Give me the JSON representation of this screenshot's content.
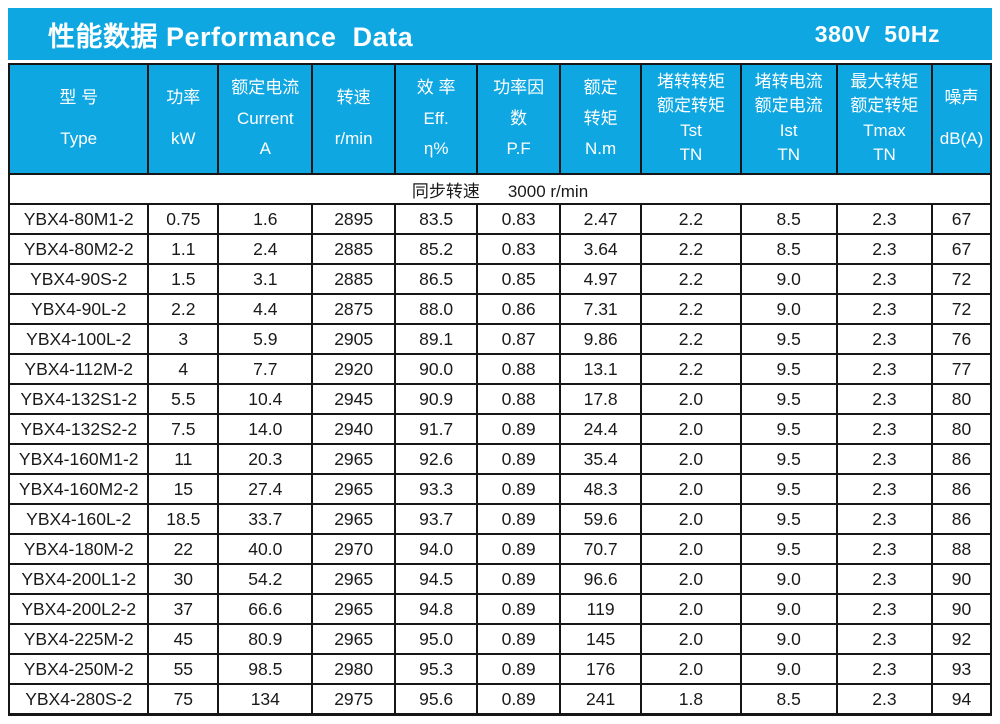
{
  "colors": {
    "accent": "#0ea7e2",
    "border": "#161616",
    "header_text": "#ffffff",
    "data_text": "#1a1a1a"
  },
  "title_bar": {
    "title": "性能数据 Performance  Data",
    "voltage_freq": "380V  50Hz"
  },
  "sync_row": {
    "label": "同步转速",
    "value": "3000 r/min"
  },
  "table": {
    "columns": [
      {
        "id": "type",
        "lines": [
          "型 号",
          "Type"
        ]
      },
      {
        "id": "power",
        "lines": [
          "功率",
          "kW"
        ]
      },
      {
        "id": "current",
        "lines": [
          "额定电流",
          "Current",
          "A"
        ]
      },
      {
        "id": "speed",
        "lines": [
          "转速",
          "r/min"
        ]
      },
      {
        "id": "efficiency",
        "lines": [
          "效 率",
          "Eff.",
          "η%"
        ]
      },
      {
        "id": "power-factor",
        "lines": [
          "功率因",
          "数",
          "P.F"
        ]
      },
      {
        "id": "rated-torque",
        "lines": [
          "额定",
          "转矩",
          "N.m"
        ]
      },
      {
        "id": "locked-rotor-torque-ratio",
        "lines": [
          "堵转转矩",
          "额定转矩",
          "Tst",
          "TN"
        ]
      },
      {
        "id": "locked-rotor-current-ratio",
        "lines": [
          "堵转电流",
          "额定电流",
          "Ist",
          "TN"
        ]
      },
      {
        "id": "max-torque-ratio",
        "lines": [
          "最大转矩",
          "额定转矩",
          "Tmax",
          "TN"
        ]
      },
      {
        "id": "noise",
        "lines": [
          "噪声",
          "dB(A)"
        ]
      }
    ],
    "rows": [
      [
        "YBX4-80M1-2",
        "0.75",
        "1.6",
        "2895",
        "83.5",
        "0.83",
        "2.47",
        "2.2",
        "8.5",
        "2.3",
        "67"
      ],
      [
        "YBX4-80M2-2",
        "1.1",
        "2.4",
        "2885",
        "85.2",
        "0.83",
        "3.64",
        "2.2",
        "8.5",
        "2.3",
        "67"
      ],
      [
        "YBX4-90S-2",
        "1.5",
        "3.1",
        "2885",
        "86.5",
        "0.85",
        "4.97",
        "2.2",
        "9.0",
        "2.3",
        "72"
      ],
      [
        "YBX4-90L-2",
        "2.2",
        "4.4",
        "2875",
        "88.0",
        "0.86",
        "7.31",
        "2.2",
        "9.0",
        "2.3",
        "72"
      ],
      [
        "YBX4-100L-2",
        "3",
        "5.9",
        "2905",
        "89.1",
        "0.87",
        "9.86",
        "2.2",
        "9.5",
        "2.3",
        "76"
      ],
      [
        "YBX4-112M-2",
        "4",
        "7.7",
        "2920",
        "90.0",
        "0.88",
        "13.1",
        "2.2",
        "9.5",
        "2.3",
        "77"
      ],
      [
        "YBX4-132S1-2",
        "5.5",
        "10.4",
        "2945",
        "90.9",
        "0.88",
        "17.8",
        "2.0",
        "9.5",
        "2.3",
        "80"
      ],
      [
        "YBX4-132S2-2",
        "7.5",
        "14.0",
        "2940",
        "91.7",
        "0.89",
        "24.4",
        "2.0",
        "9.5",
        "2.3",
        "80"
      ],
      [
        "YBX4-160M1-2",
        "11",
        "20.3",
        "2965",
        "92.6",
        "0.89",
        "35.4",
        "2.0",
        "9.5",
        "2.3",
        "86"
      ],
      [
        "YBX4-160M2-2",
        "15",
        "27.4",
        "2965",
        "93.3",
        "0.89",
        "48.3",
        "2.0",
        "9.5",
        "2.3",
        "86"
      ],
      [
        "YBX4-160L-2",
        "18.5",
        "33.7",
        "2965",
        "93.7",
        "0.89",
        "59.6",
        "2.0",
        "9.5",
        "2.3",
        "86"
      ],
      [
        "YBX4-180M-2",
        "22",
        "40.0",
        "2970",
        "94.0",
        "0.89",
        "70.7",
        "2.0",
        "9.5",
        "2.3",
        "88"
      ],
      [
        "YBX4-200L1-2",
        "30",
        "54.2",
        "2965",
        "94.5",
        "0.89",
        "96.6",
        "2.0",
        "9.0",
        "2.3",
        "90"
      ],
      [
        "YBX4-200L2-2",
        "37",
        "66.6",
        "2965",
        "94.8",
        "0.89",
        "119",
        "2.0",
        "9.0",
        "2.3",
        "90"
      ],
      [
        "YBX4-225M-2",
        "45",
        "80.9",
        "2965",
        "95.0",
        "0.89",
        "145",
        "2.0",
        "9.0",
        "2.3",
        "92"
      ],
      [
        "YBX4-250M-2",
        "55",
        "98.5",
        "2980",
        "95.3",
        "0.89",
        "176",
        "2.0",
        "9.0",
        "2.3",
        "93"
      ],
      [
        "YBX4-280S-2",
        "75",
        "134",
        "2975",
        "95.6",
        "0.89",
        "241",
        "1.8",
        "8.5",
        "2.3",
        "94"
      ]
    ]
  }
}
